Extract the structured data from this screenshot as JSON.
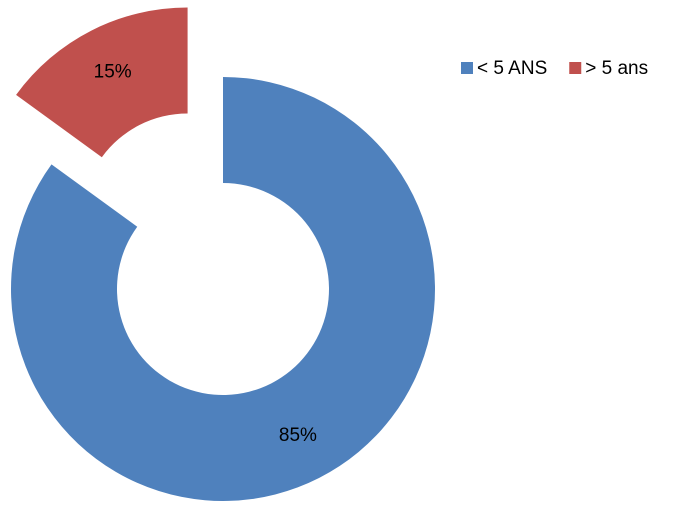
{
  "chart_data": {
    "type": "doughnut",
    "categories": [
      "< 5 ANS",
      "> 5 ans"
    ],
    "values": [
      85,
      15
    ],
    "value_labels": [
      "85%",
      "15%"
    ],
    "colors": [
      "#4f81bd",
      "#c0504d"
    ],
    "legend": "top-right"
  }
}
